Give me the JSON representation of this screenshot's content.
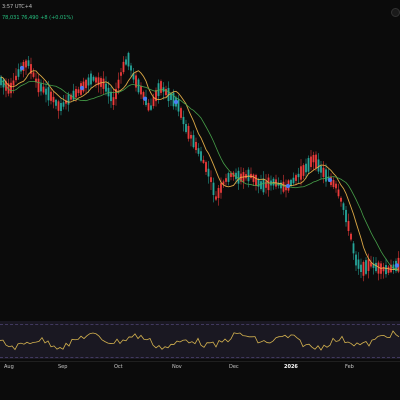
{
  "header": {
    "line1_text": "3:57 UTC+4",
    "line2": {
      "part1": "78,031",
      "part2": "76,490",
      "part3": "+8 (+0.01%)"
    }
  },
  "timeline": {
    "labels": [
      "Aug",
      "Sep",
      "Oct",
      "Nov",
      "Dec",
      "2026",
      "Feb"
    ]
  },
  "colors": {
    "background": "#0b0b0b",
    "bull": "#26a69a",
    "bear": "#ef3b3b",
    "ma_fast": "#f2b84b",
    "ma_slow": "#4caf50",
    "rsi_line": "#d4b24f",
    "rsi_band": "#7c6bd6",
    "marker": "#4c7cf2"
  }
}
